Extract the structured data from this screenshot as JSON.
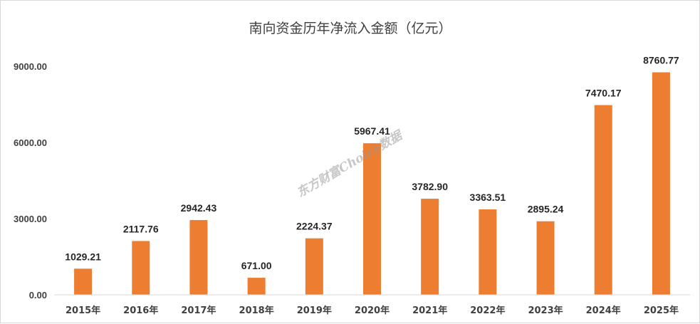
{
  "chart_data": {
    "type": "bar",
    "title": "南向资金历年净流入金额（亿元）",
    "categories": [
      "2015年",
      "2016年",
      "2017年",
      "2018年",
      "2019年",
      "2020年",
      "2021年",
      "2022年",
      "2023年",
      "2024年",
      "2025年"
    ],
    "values": [
      1029.21,
      2117.76,
      2942.43,
      671.0,
      2224.37,
      5967.41,
      3782.9,
      3363.51,
      2895.24,
      7470.17,
      8760.77
    ],
    "data_labels": [
      "1029.21",
      "2117.76",
      "2942.43",
      "671.00",
      "2224.37",
      "5967.41",
      "3782.90",
      "3363.51",
      "2895.24",
      "7470.17",
      "8760.77"
    ],
    "yticks": [
      0,
      3000,
      6000,
      9000
    ],
    "ytick_labels": [
      "0.00",
      "3000.00",
      "6000.00",
      "9000.00"
    ],
    "ylim": [
      0,
      9000
    ],
    "xlabel": "",
    "ylabel": "",
    "grid": false,
    "bar_color": "#ED7D31"
  },
  "watermark": "东方财富Choice数据"
}
